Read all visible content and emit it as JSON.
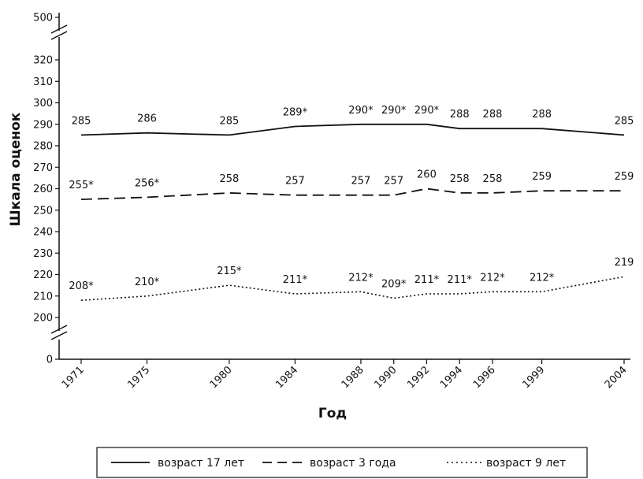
{
  "chart_data": {
    "type": "line",
    "xlabel": "Год",
    "ylabel": "Шкала оценок",
    "x": [
      "1971",
      "1975",
      "1980",
      "1984",
      "1988",
      "1990",
      "1992",
      "1994",
      "1996",
      "1999",
      "2004"
    ],
    "y_ticks": [
      "0",
      "200",
      "210",
      "220",
      "230",
      "240",
      "250",
      "260",
      "270",
      "280",
      "290",
      "300",
      "310",
      "320",
      "500"
    ],
    "axis_breaks": [
      "0–200",
      "320–500"
    ],
    "ylim": [
      200,
      320
    ],
    "series": [
      {
        "name": "возраст  17 лет",
        "line_style": "solid",
        "values": [
          285,
          286,
          285,
          289,
          290,
          290,
          290,
          288,
          288,
          288,
          285
        ],
        "labels": [
          "285",
          "286",
          "285",
          "289*",
          "290*",
          "290*",
          "290*",
          "288",
          "288",
          "288",
          "285"
        ]
      },
      {
        "name": "возраст 3 года",
        "line_style": "dashed",
        "values": [
          255,
          256,
          258,
          257,
          257,
          257,
          260,
          258,
          258,
          259,
          259
        ],
        "labels": [
          "255*",
          "256*",
          "258",
          "257",
          "257",
          "257",
          "260",
          "258",
          "258",
          "259",
          "259"
        ]
      },
      {
        "name": "возраст  9 лет",
        "line_style": "dotted",
        "values": [
          208,
          210,
          215,
          211,
          212,
          209,
          211,
          211,
          212,
          212,
          219
        ],
        "labels": [
          "208*",
          "210*",
          "215*",
          "211*",
          "212*",
          "209*",
          "211*",
          "211*",
          "212*",
          "212*",
          "219"
        ]
      }
    ],
    "legend_position": "bottom",
    "grid": false,
    "colors": {
      "line": "#111111",
      "background": "#ffffff"
    }
  }
}
